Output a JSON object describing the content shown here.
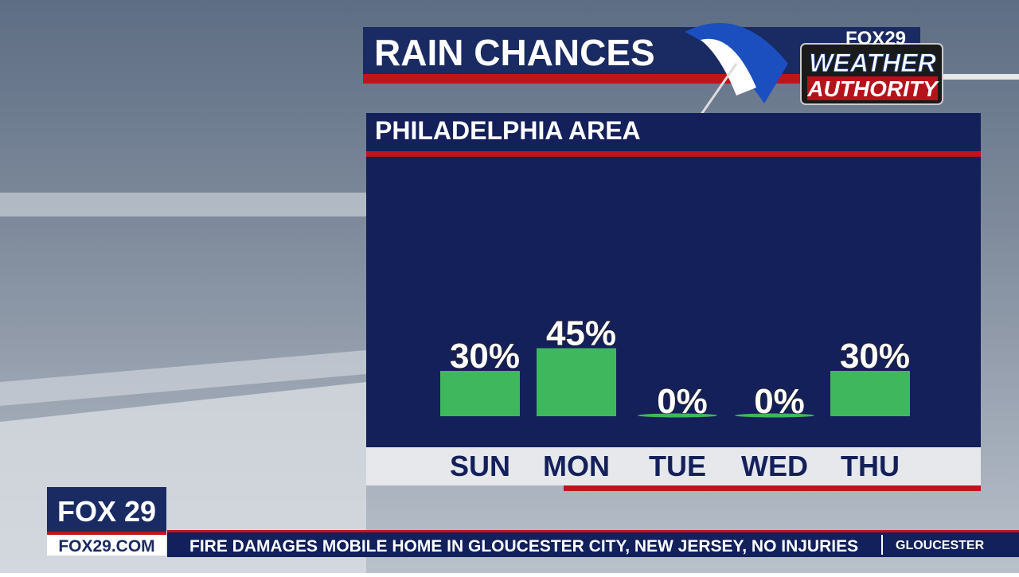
{
  "chart_data": {
    "type": "bar",
    "title": "RAIN CHANCES",
    "subtitle": "PHILADELPHIA AREA",
    "categories": [
      "SUN",
      "MON",
      "TUE",
      "WED",
      "THU"
    ],
    "values": [
      30,
      45,
      0,
      0,
      30
    ],
    "value_labels": [
      "30%",
      "45%",
      "0%",
      "0%",
      "30%"
    ],
    "color": "#3fb75c"
  },
  "branding": {
    "logo_top": "FOX29",
    "logo_line1": "WEATHER",
    "logo_line2": "AUTHORITY",
    "station": "FOX 29",
    "website": "FOX29.COM"
  },
  "ticker": {
    "headline": "FIRE DAMAGES MOBILE HOME IN GLOUCESTER CITY, NEW JERSEY, NO INJURIES",
    "location": "GLOUCESTER"
  }
}
